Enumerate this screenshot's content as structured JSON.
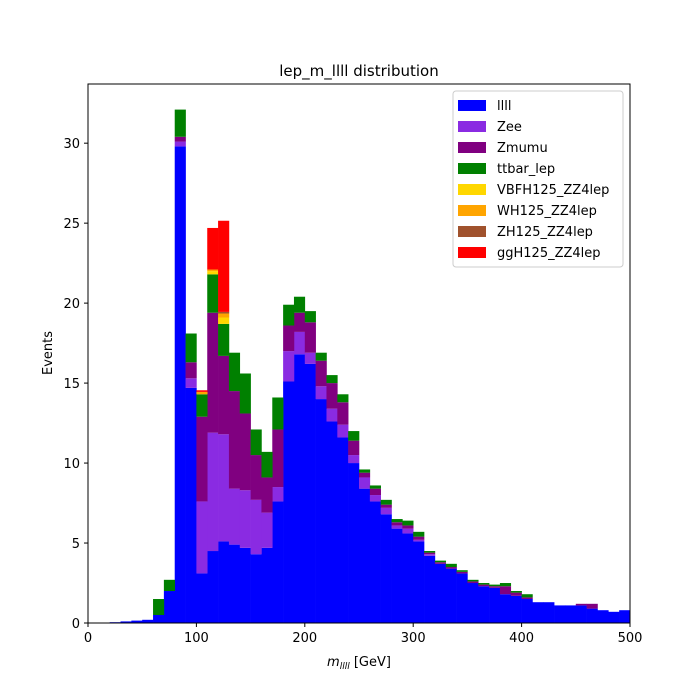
{
  "chart_data": {
    "type": "bar",
    "stacked": true,
    "title": "lep_m_llll distribution",
    "xlabel_math": "m",
    "xlabel_sub": "llll",
    "xlabel_unit": " [GeV]",
    "ylabel": "Events",
    "xlim": [
      0,
      500
    ],
    "ylim": [
      0,
      33.7
    ],
    "xticks": [
      0,
      100,
      200,
      300,
      400,
      500
    ],
    "yticks": [
      0,
      5,
      10,
      15,
      20,
      25,
      30
    ],
    "grid": false,
    "legend_position": "top-right",
    "bin_edges": [
      0,
      10,
      20,
      30,
      40,
      50,
      60,
      70,
      80,
      90,
      100,
      110,
      120,
      130,
      140,
      150,
      160,
      170,
      180,
      190,
      200,
      210,
      220,
      230,
      240,
      250,
      260,
      270,
      280,
      290,
      300,
      310,
      320,
      330,
      340,
      350,
      360,
      370,
      380,
      390,
      400,
      410,
      420,
      430,
      440,
      450,
      460,
      470,
      480,
      490,
      500
    ],
    "series": [
      {
        "name": "llll",
        "color": "#0000ff",
        "values": [
          0,
          0,
          0.05,
          0.1,
          0.15,
          0.2,
          0.5,
          2.0,
          29.8,
          14.7,
          3.1,
          4.5,
          5.1,
          4.9,
          4.7,
          4.3,
          4.7,
          7.6,
          15.1,
          16.8,
          16.2,
          14.0,
          12.6,
          11.6,
          10.0,
          8.4,
          7.6,
          6.8,
          5.9,
          5.6,
          5.1,
          4.2,
          3.7,
          3.4,
          3.1,
          2.5,
          2.3,
          2.2,
          1.8,
          1.7,
          1.5,
          1.3,
          1.3,
          1.1,
          1.1,
          1.1,
          0.9,
          0.8,
          0.7,
          0.8
        ]
      },
      {
        "name": "Zee",
        "color": "#8a2be2",
        "values": [
          0,
          0,
          0,
          0,
          0,
          0,
          0,
          0,
          0.3,
          0.6,
          4.5,
          7.4,
          6.7,
          3.5,
          3.6,
          3.4,
          2.2,
          0.9,
          1.9,
          1.4,
          0.7,
          0.8,
          0.8,
          0.8,
          0.5,
          0.7,
          0.4,
          0.4,
          0.2,
          0.3,
          0.1,
          0.1,
          0,
          0,
          0,
          0,
          0,
          0,
          0,
          0,
          0,
          0,
          0,
          0,
          0,
          0,
          0,
          0,
          0,
          0
        ]
      },
      {
        "name": "Zmumu",
        "color": "#800080",
        "values": [
          0,
          0,
          0,
          0,
          0,
          0,
          0,
          0,
          0.3,
          1.0,
          5.3,
          7.5,
          4.9,
          6.1,
          4.8,
          2.8,
          2.2,
          3.6,
          1.6,
          1.2,
          1.9,
          1.6,
          1.6,
          1.4,
          0.9,
          0.3,
          0.4,
          0.2,
          0.2,
          0.2,
          0.2,
          0.1,
          0.1,
          0.1,
          0.1,
          0.1,
          0.1,
          0.1,
          0.5,
          0.2,
          0.1,
          0,
          0,
          0,
          0,
          0.1,
          0.3,
          0,
          0,
          0
        ]
      },
      {
        "name": "ttbar_lep",
        "color": "#008000",
        "values": [
          0,
          0,
          0,
          0,
          0,
          0,
          1.0,
          0.7,
          1.7,
          1.8,
          1.4,
          2.4,
          2.0,
          2.4,
          2.5,
          1.6,
          1.6,
          2.0,
          1.3,
          1.0,
          0.7,
          0.5,
          0.5,
          0.5,
          0.6,
          0.2,
          0.2,
          0.3,
          0.2,
          0.3,
          0.3,
          0.1,
          0.1,
          0.2,
          0.1,
          0.1,
          0.1,
          0.1,
          0.2,
          0.1,
          0.2,
          0,
          0,
          0,
          0,
          0,
          0,
          0,
          0,
          0
        ]
      },
      {
        "name": "VBFH125_ZZ4lep",
        "color": "#ffd700",
        "values": [
          0,
          0,
          0,
          0,
          0,
          0,
          0,
          0,
          0,
          0,
          0,
          0.2,
          0.4,
          0,
          0,
          0,
          0,
          0,
          0,
          0,
          0,
          0,
          0,
          0,
          0,
          0,
          0,
          0,
          0,
          0,
          0,
          0,
          0,
          0,
          0,
          0,
          0,
          0,
          0,
          0,
          0,
          0,
          0,
          0,
          0,
          0,
          0,
          0,
          0,
          0
        ]
      },
      {
        "name": "WH125_ZZ4lep",
        "color": "#ffa500",
        "values": [
          0,
          0,
          0,
          0,
          0,
          0,
          0,
          0,
          0,
          0,
          0.15,
          0.1,
          0.25,
          0,
          0,
          0,
          0,
          0,
          0,
          0,
          0,
          0,
          0,
          0,
          0,
          0,
          0,
          0,
          0,
          0,
          0,
          0,
          0,
          0,
          0,
          0,
          0,
          0,
          0,
          0,
          0,
          0,
          0,
          0,
          0,
          0,
          0,
          0,
          0,
          0
        ]
      },
      {
        "name": "ZH125_ZZ4lep",
        "color": "#a0522d",
        "values": [
          0,
          0,
          0,
          0,
          0,
          0,
          0,
          0,
          0,
          0,
          0,
          0,
          0.1,
          0,
          0,
          0,
          0,
          0,
          0,
          0,
          0,
          0,
          0,
          0,
          0,
          0,
          0,
          0,
          0,
          0,
          0,
          0,
          0,
          0,
          0,
          0,
          0,
          0,
          0,
          0,
          0,
          0,
          0,
          0,
          0,
          0,
          0,
          0,
          0,
          0
        ]
      },
      {
        "name": "ggH125_ZZ4lep",
        "color": "#ff0000",
        "values": [
          0,
          0,
          0,
          0,
          0,
          0,
          0,
          0,
          0,
          0,
          0.1,
          2.6,
          5.7,
          0,
          0,
          0,
          0,
          0,
          0,
          0,
          0,
          0,
          0,
          0,
          0,
          0,
          0,
          0,
          0,
          0,
          0,
          0,
          0,
          0,
          0,
          0,
          0,
          0,
          0,
          0,
          0,
          0,
          0,
          0,
          0,
          0,
          0,
          0,
          0,
          0
        ]
      }
    ]
  }
}
